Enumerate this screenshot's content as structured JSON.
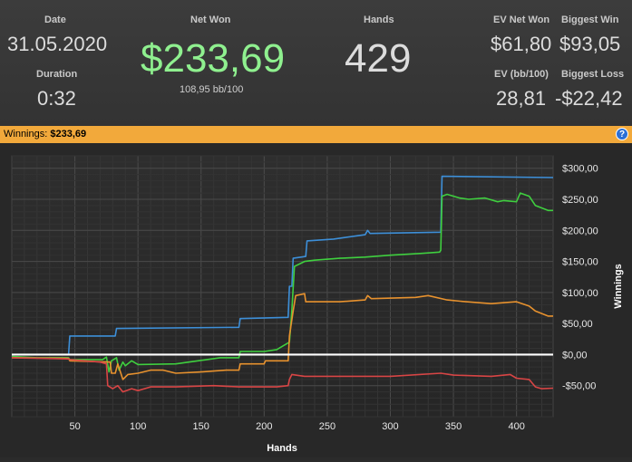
{
  "stats": {
    "date_label": "Date",
    "date_value": "31.05.2020",
    "duration_label": "Duration",
    "duration_value": "0:32",
    "net_won_label": "Net Won",
    "net_won_value": "$233,69",
    "bb_per_100": "108,95 bb/100",
    "hands_label": "Hands",
    "hands_value": "429",
    "ev_net_won_label": "EV Net Won",
    "ev_net_won_value": "$61,80",
    "biggest_win_label": "Biggest Win",
    "biggest_win_value": "$93,05",
    "ev_bb100_label": "EV (bb/100)",
    "ev_bb100_value": "28,81",
    "biggest_loss_label": "Biggest Loss",
    "biggest_loss_value": "-$22,42"
  },
  "winnings_bar": {
    "label": "Winnings:",
    "value": "$233,69",
    "help_icon": "help-icon"
  },
  "colors": {
    "net_won": "#8ff08f",
    "header_bar": "#f2a93b",
    "blue": "#3d8fd8",
    "green": "#3fcf3f",
    "orange": "#e8922e",
    "red": "#d84545",
    "zero_line": "#ffffff"
  },
  "chart_data": {
    "type": "line",
    "xlabel": "Hands",
    "ylabel": "Winnings",
    "xlim": [
      0,
      429
    ],
    "ylim": [
      -100,
      320
    ],
    "x_ticks": [
      50,
      100,
      150,
      200,
      250,
      300,
      350,
      400
    ],
    "y_ticks": [
      -50,
      0,
      50,
      100,
      150,
      200,
      250,
      300
    ],
    "y_tick_labels": [
      "-$50,00",
      "$0,00",
      "$50,00",
      "$100,00",
      "$150,00",
      "$200,00",
      "$250,00",
      "$300,00"
    ],
    "grid": true,
    "series": [
      {
        "color": "#3d8fd8",
        "points": [
          [
            0,
            0
          ],
          [
            45,
            0
          ],
          [
            46,
            30
          ],
          [
            82,
            30
          ],
          [
            83,
            42
          ],
          [
            180,
            44
          ],
          [
            181,
            58
          ],
          [
            219,
            60
          ],
          [
            220,
            110
          ],
          [
            222,
            110
          ],
          [
            223,
            155
          ],
          [
            233,
            158
          ],
          [
            234,
            183
          ],
          [
            255,
            186
          ],
          [
            280,
            193
          ],
          [
            282,
            200
          ],
          [
            284,
            195
          ],
          [
            340,
            197
          ],
          [
            341,
            287
          ],
          [
            429,
            285
          ]
        ]
      },
      {
        "color": "#3fcf3f",
        "points": [
          [
            0,
            -3
          ],
          [
            20,
            -5
          ],
          [
            45,
            -5
          ],
          [
            46,
            -8
          ],
          [
            72,
            -8
          ],
          [
            75,
            -4
          ],
          [
            77,
            -28
          ],
          [
            79,
            -10
          ],
          [
            83,
            -5
          ],
          [
            85,
            -25
          ],
          [
            88,
            -12
          ],
          [
            90,
            -18
          ],
          [
            95,
            -10
          ],
          [
            100,
            -16
          ],
          [
            130,
            -15
          ],
          [
            165,
            -5
          ],
          [
            180,
            -5
          ],
          [
            181,
            5
          ],
          [
            200,
            5
          ],
          [
            210,
            8
          ],
          [
            220,
            20
          ],
          [
            222,
            72
          ],
          [
            224,
            142
          ],
          [
            232,
            150
          ],
          [
            240,
            152
          ],
          [
            260,
            155
          ],
          [
            280,
            157
          ],
          [
            300,
            160
          ],
          [
            325,
            163
          ],
          [
            339,
            165
          ],
          [
            340,
            168
          ],
          [
            341,
            255
          ],
          [
            345,
            258
          ],
          [
            355,
            252
          ],
          [
            362,
            250
          ],
          [
            375,
            252
          ],
          [
            385,
            246
          ],
          [
            390,
            248
          ],
          [
            400,
            246
          ],
          [
            403,
            260
          ],
          [
            410,
            255
          ],
          [
            415,
            240
          ],
          [
            425,
            232
          ],
          [
            429,
            232
          ]
        ]
      },
      {
        "color": "#e8922e",
        "points": [
          [
            0,
            -5
          ],
          [
            45,
            -6
          ],
          [
            46,
            -10
          ],
          [
            78,
            -12
          ],
          [
            79,
            -30
          ],
          [
            82,
            -30
          ],
          [
            84,
            -15
          ],
          [
            88,
            -40
          ],
          [
            92,
            -32
          ],
          [
            100,
            -30
          ],
          [
            110,
            -25
          ],
          [
            120,
            -25
          ],
          [
            130,
            -30
          ],
          [
            150,
            -28
          ],
          [
            170,
            -25
          ],
          [
            180,
            -25
          ],
          [
            181,
            -15
          ],
          [
            200,
            -15
          ],
          [
            201,
            -10
          ],
          [
            219,
            -10
          ],
          [
            220,
            30
          ],
          [
            223,
            70
          ],
          [
            225,
            95
          ],
          [
            232,
            98
          ],
          [
            233,
            85
          ],
          [
            260,
            85
          ],
          [
            280,
            88
          ],
          [
            282,
            95
          ],
          [
            285,
            90
          ],
          [
            320,
            92
          ],
          [
            330,
            95
          ],
          [
            345,
            88
          ],
          [
            360,
            85
          ],
          [
            380,
            82
          ],
          [
            400,
            85
          ],
          [
            410,
            78
          ],
          [
            415,
            70
          ],
          [
            425,
            62
          ],
          [
            429,
            62
          ]
        ]
      },
      {
        "color": "#d84545",
        "points": [
          [
            0,
            -5
          ],
          [
            45,
            -7
          ],
          [
            46,
            -8
          ],
          [
            70,
            -12
          ],
          [
            75,
            -15
          ],
          [
            76,
            -50
          ],
          [
            80,
            -55
          ],
          [
            84,
            -50
          ],
          [
            88,
            -60
          ],
          [
            95,
            -55
          ],
          [
            100,
            -58
          ],
          [
            110,
            -52
          ],
          [
            130,
            -52
          ],
          [
            160,
            -50
          ],
          [
            180,
            -52
          ],
          [
            210,
            -52
          ],
          [
            219,
            -50
          ],
          [
            220,
            -40
          ],
          [
            222,
            -32
          ],
          [
            232,
            -35
          ],
          [
            260,
            -35
          ],
          [
            300,
            -35
          ],
          [
            340,
            -30
          ],
          [
            350,
            -33
          ],
          [
            380,
            -35
          ],
          [
            395,
            -32
          ],
          [
            400,
            -38
          ],
          [
            410,
            -40
          ],
          [
            415,
            -52
          ],
          [
            420,
            -55
          ],
          [
            429,
            -54
          ]
        ]
      }
    ]
  }
}
